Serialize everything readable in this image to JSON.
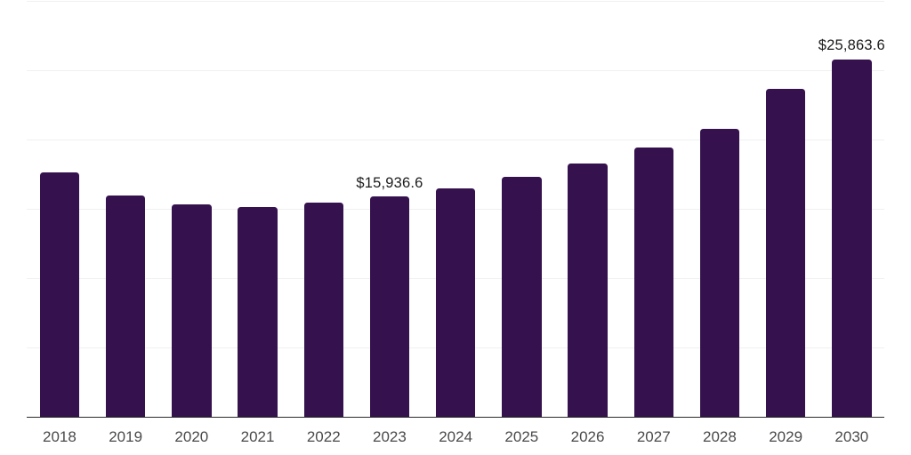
{
  "chart_data": {
    "type": "bar",
    "title": "",
    "xlabel": "",
    "ylabel": "",
    "legend_position": "none",
    "categories": [
      "2018",
      "2019",
      "2020",
      "2021",
      "2022",
      "2023",
      "2024",
      "2025",
      "2026",
      "2027",
      "2028",
      "2029",
      "2030"
    ],
    "values": [
      17670,
      16030,
      15380,
      15210,
      15530,
      15936.6,
      16560,
      17350,
      18330,
      19490,
      20810,
      23700,
      25863.6
    ],
    "value_labels": [
      "",
      "",
      "",
      "",
      "",
      "$15,936.6",
      "",
      "",
      "",
      "",
      "",
      "",
      "$25,863.6"
    ],
    "ylim": [
      0,
      30000
    ],
    "gridline_step": 5000,
    "grid": "horizontal",
    "colors": {
      "bar": "#35114E",
      "axis_line": "#2b2b2b",
      "gridline": "#f0f0f0",
      "tick_label": "#4a4a4a",
      "value_label": "#1c1c1c",
      "background": "#ffffff"
    }
  }
}
